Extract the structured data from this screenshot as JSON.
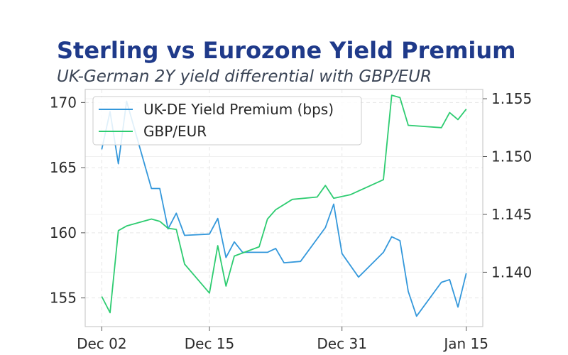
{
  "chart_data": {
    "type": "line",
    "title": "Sterling vs Eurozone Yield Premium",
    "subtitle": "UK-German 2Y yield differential with GBP/EUR",
    "xlabel": "",
    "ylabel": "",
    "y2label": "",
    "xlim": [
      "2023-11-30",
      "2024-01-17"
    ],
    "xticks": [
      {
        "date": "2023-12-02",
        "label": "Dec 02"
      },
      {
        "date": "2023-12-15",
        "label": "Dec 15"
      },
      {
        "date": "2023-12-31",
        "label": "Dec 31"
      },
      {
        "date": "2024-01-15",
        "label": "Jan 15"
      }
    ],
    "ylim": [
      152.8,
      171.0
    ],
    "yticks": [
      155,
      160,
      165,
      170
    ],
    "y2lim": [
      1.1353,
      1.1558
    ],
    "y2ticks": [
      "1.140",
      "1.145",
      "1.150",
      "1.155"
    ],
    "grid": true,
    "legend_position": "upper-left",
    "series": [
      {
        "name": "UK-DE Yield Premium (bps)",
        "axis": "left",
        "color": "#3498db",
        "points": [
          [
            "2023-12-02",
            166.4
          ],
          [
            "2023-12-03",
            169.3
          ],
          [
            "2023-12-04",
            165.3
          ],
          [
            "2023-12-05",
            170.1
          ],
          [
            "2023-12-08",
            163.4
          ],
          [
            "2023-12-09",
            163.4
          ],
          [
            "2023-12-10",
            160.3
          ],
          [
            "2023-12-11",
            161.5
          ],
          [
            "2023-12-12",
            159.8
          ],
          [
            "2023-12-15",
            159.9
          ],
          [
            "2023-12-16",
            161.1
          ],
          [
            "2023-12-17",
            158.1
          ],
          [
            "2023-12-18",
            159.3
          ],
          [
            "2023-12-19",
            158.5
          ],
          [
            "2023-12-22",
            158.5
          ],
          [
            "2023-12-23",
            158.8
          ],
          [
            "2023-12-24",
            157.7
          ],
          [
            "2023-12-26",
            157.8
          ],
          [
            "2023-12-29",
            160.4
          ],
          [
            "2023-12-30",
            162.2
          ],
          [
            "2023-12-31",
            158.4
          ],
          [
            "2024-01-02",
            156.6
          ],
          [
            "2024-01-05",
            158.5
          ],
          [
            "2024-01-06",
            159.7
          ],
          [
            "2024-01-07",
            159.4
          ],
          [
            "2024-01-08",
            155.5
          ],
          [
            "2024-01-09",
            153.6
          ],
          [
            "2024-01-12",
            156.2
          ],
          [
            "2024-01-13",
            156.4
          ],
          [
            "2024-01-14",
            154.3
          ],
          [
            "2024-01-15",
            156.9
          ]
        ]
      },
      {
        "name": "GBP/EUR",
        "axis": "right",
        "color": "#2ecc71",
        "points": [
          [
            "2023-12-02",
            1.1379
          ],
          [
            "2023-12-03",
            1.1365
          ],
          [
            "2023-12-04",
            1.1436
          ],
          [
            "2023-12-05",
            1.144
          ],
          [
            "2023-12-08",
            1.1446
          ],
          [
            "2023-12-09",
            1.1444
          ],
          [
            "2023-12-10",
            1.1438
          ],
          [
            "2023-12-11",
            1.1437
          ],
          [
            "2023-12-12",
            1.1407
          ],
          [
            "2023-12-15",
            1.1382
          ],
          [
            "2023-12-16",
            1.1423
          ],
          [
            "2023-12-17",
            1.1388
          ],
          [
            "2023-12-18",
            1.1414
          ],
          [
            "2023-12-21",
            1.1422
          ],
          [
            "2023-12-22",
            1.1446
          ],
          [
            "2023-12-23",
            1.1454
          ],
          [
            "2023-12-25",
            1.1463
          ],
          [
            "2023-12-28",
            1.1465
          ],
          [
            "2023-12-29",
            1.1475
          ],
          [
            "2023-12-30",
            1.1464
          ],
          [
            "2024-01-01",
            1.1467
          ],
          [
            "2024-01-05",
            1.148
          ],
          [
            "2024-01-06",
            1.1553
          ],
          [
            "2024-01-07",
            1.1551
          ],
          [
            "2024-01-08",
            1.1527
          ],
          [
            "2024-01-12",
            1.1525
          ],
          [
            "2024-01-13",
            1.1538
          ],
          [
            "2024-01-14",
            1.1532
          ],
          [
            "2024-01-15",
            1.1541
          ]
        ]
      }
    ]
  },
  "style": {
    "title_color": "#1f3a8a",
    "subtitle_color": "#3b4556",
    "axis_color": "#cccccc",
    "grid_color": "#e6e6e6",
    "tick_label_color": "#2b2b2b"
  }
}
